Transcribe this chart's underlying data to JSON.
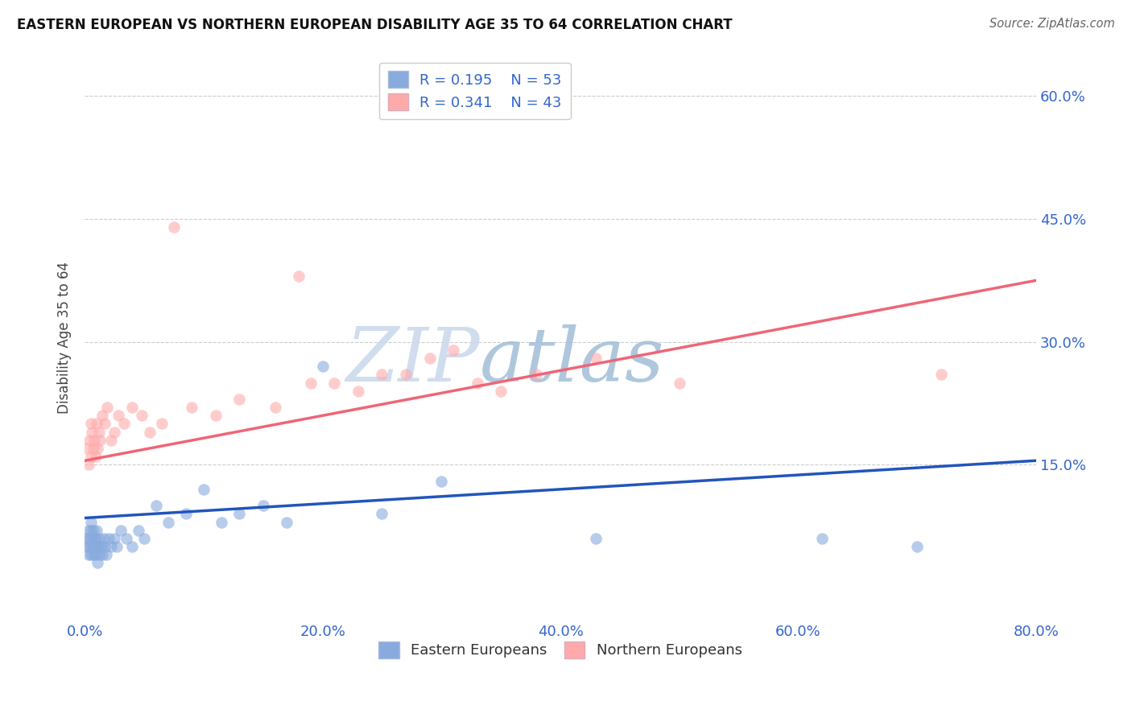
{
  "title": "EASTERN EUROPEAN VS NORTHERN EUROPEAN DISABILITY AGE 35 TO 64 CORRELATION CHART",
  "source": "Source: ZipAtlas.com",
  "ylabel_label": "Disability Age 35 to 64",
  "xlim": [
    0.0,
    0.8
  ],
  "ylim": [
    -0.04,
    0.65
  ],
  "x_tick_vals": [
    0.0,
    0.2,
    0.4,
    0.6,
    0.8
  ],
  "x_tick_labels": [
    "0.0%",
    "20.0%",
    "40.0%",
    "60.0%",
    "80.0%"
  ],
  "y_tick_vals": [
    0.15,
    0.3,
    0.45,
    0.6
  ],
  "y_tick_labels": [
    "15.0%",
    "30.0%",
    "45.0%",
    "60.0%"
  ],
  "blue_R": 0.195,
  "blue_N": 53,
  "pink_R": 0.341,
  "pink_N": 43,
  "blue_color": "#88AADD",
  "pink_color": "#FFAAAA",
  "blue_line_color": "#2255BB",
  "pink_line_color": "#EE6677",
  "blue_line_x0": 0.0,
  "blue_line_y0": 0.085,
  "blue_line_x1": 0.8,
  "blue_line_y1": 0.155,
  "pink_line_x0": 0.0,
  "pink_line_y0": 0.155,
  "pink_line_x1": 0.8,
  "pink_line_y1": 0.375,
  "watermark_text": "ZIPatlas",
  "legend_labels": [
    "Eastern Europeans",
    "Northern Europeans"
  ],
  "blue_scatter_x": [
    0.001,
    0.002,
    0.003,
    0.003,
    0.004,
    0.004,
    0.005,
    0.005,
    0.005,
    0.006,
    0.006,
    0.007,
    0.007,
    0.007,
    0.008,
    0.008,
    0.009,
    0.009,
    0.01,
    0.01,
    0.011,
    0.011,
    0.012,
    0.012,
    0.013,
    0.014,
    0.015,
    0.016,
    0.017,
    0.018,
    0.02,
    0.022,
    0.025,
    0.027,
    0.03,
    0.035,
    0.04,
    0.045,
    0.05,
    0.06,
    0.07,
    0.085,
    0.1,
    0.115,
    0.13,
    0.15,
    0.17,
    0.2,
    0.25,
    0.3,
    0.43,
    0.62,
    0.7
  ],
  "blue_scatter_y": [
    0.06,
    0.05,
    0.04,
    0.07,
    0.05,
    0.06,
    0.04,
    0.07,
    0.08,
    0.05,
    0.06,
    0.04,
    0.05,
    0.07,
    0.05,
    0.06,
    0.04,
    0.06,
    0.05,
    0.07,
    0.03,
    0.05,
    0.04,
    0.06,
    0.05,
    0.05,
    0.04,
    0.06,
    0.05,
    0.04,
    0.06,
    0.05,
    0.06,
    0.05,
    0.07,
    0.06,
    0.05,
    0.07,
    0.06,
    0.1,
    0.08,
    0.09,
    0.12,
    0.08,
    0.09,
    0.1,
    0.08,
    0.27,
    0.09,
    0.13,
    0.06,
    0.06,
    0.05
  ],
  "pink_scatter_x": [
    0.002,
    0.003,
    0.004,
    0.005,
    0.005,
    0.006,
    0.007,
    0.008,
    0.009,
    0.01,
    0.011,
    0.012,
    0.013,
    0.015,
    0.017,
    0.019,
    0.022,
    0.025,
    0.028,
    0.033,
    0.04,
    0.048,
    0.055,
    0.065,
    0.075,
    0.09,
    0.11,
    0.13,
    0.16,
    0.19,
    0.23,
    0.27,
    0.31,
    0.35,
    0.18,
    0.21,
    0.25,
    0.29,
    0.33,
    0.38,
    0.43,
    0.5,
    0.72
  ],
  "pink_scatter_y": [
    0.17,
    0.15,
    0.18,
    0.16,
    0.2,
    0.19,
    0.17,
    0.18,
    0.16,
    0.2,
    0.17,
    0.19,
    0.18,
    0.21,
    0.2,
    0.22,
    0.18,
    0.19,
    0.21,
    0.2,
    0.22,
    0.21,
    0.19,
    0.2,
    0.44,
    0.22,
    0.21,
    0.23,
    0.22,
    0.25,
    0.24,
    0.26,
    0.29,
    0.24,
    0.38,
    0.25,
    0.26,
    0.28,
    0.25,
    0.26,
    0.28,
    0.25,
    0.26
  ]
}
